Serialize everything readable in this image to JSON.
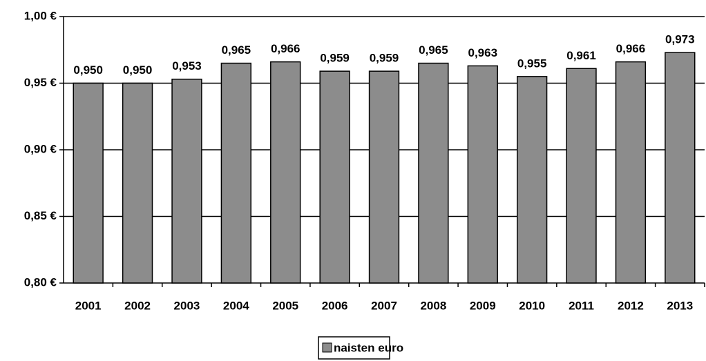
{
  "chart_data": {
    "type": "bar",
    "categories": [
      "2001",
      "2002",
      "2003",
      "2004",
      "2005",
      "2006",
      "2007",
      "2008",
      "2009",
      "2010",
      "2011",
      "2012",
      "2013"
    ],
    "series": [
      {
        "name": "naisten euro",
        "color": "#8c8c8c",
        "values": [
          0.95,
          0.95,
          0.953,
          0.965,
          0.966,
          0.959,
          0.959,
          0.965,
          0.963,
          0.955,
          0.961,
          0.966,
          0.973
        ],
        "value_labels": [
          "0,950",
          "0,950",
          "0,953",
          "0,965",
          "0,966",
          "0,959",
          "0,959",
          "0,965",
          "0,963",
          "0,955",
          "0,961",
          "0,966",
          "0,973"
        ]
      }
    ],
    "ylim": [
      0.8,
      1.0
    ],
    "yticks": [
      {
        "value": 0.8,
        "label": "0,80 €"
      },
      {
        "value": 0.85,
        "label": "0,85 €"
      },
      {
        "value": 0.9,
        "label": "0,90 €"
      },
      {
        "value": 0.95,
        "label": "0,95 €"
      },
      {
        "value": 1.0,
        "label": "1,00 €"
      }
    ],
    "grid": true,
    "legend": "bottom"
  }
}
